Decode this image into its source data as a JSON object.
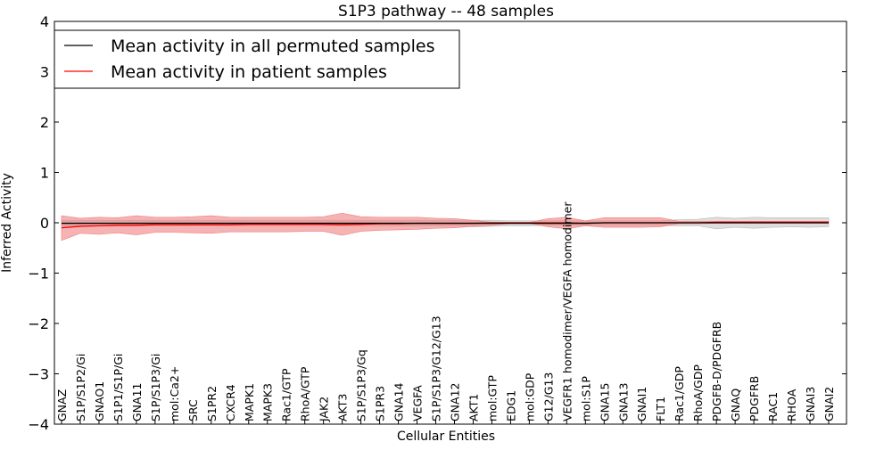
{
  "chart_data": {
    "type": "line",
    "title": "S1P3 pathway -- 48 samples",
    "xlabel": "Cellular Entities",
    "ylabel": "Inferred Activity",
    "ylim": [
      -4,
      4
    ],
    "yticks": [
      -4,
      -3,
      -2,
      -1,
      0,
      1,
      2,
      3,
      4
    ],
    "ytick_labels": [
      "−4",
      "−3",
      "−2",
      "−1",
      "0",
      "1",
      "2",
      "3",
      "4"
    ],
    "grid": false,
    "legend_position": "top-left",
    "categories": [
      "GNAZ",
      "S1P/S1P2/Gi",
      "GNAO1",
      "S1P1/S1P/Gi",
      "GNA11",
      "S1P/S1P3/Gi",
      "mol:Ca2+",
      "SRC",
      "S1PR2",
      "CXCR4",
      "MAPK1",
      "MAPK3",
      "Rac1/GTP",
      "RhoA/GTP",
      "JAK2",
      "AKT3",
      "S1P/S1P3/Gq",
      "S1PR3",
      "GNA14",
      "VEGFA",
      "S1P/S1P3/G12/G13",
      "GNA12",
      "AKT1",
      "mol:GTP",
      "EDG1",
      "mol:GDP",
      "G12/G13",
      "VEGFR1 homodimer/VEGFA homodimer",
      "mol:S1P",
      "GNA15",
      "GNA13",
      "GNAI1",
      "FLT1",
      "Rac1/GDP",
      "RhoA/GDP",
      "PDGFB-D/PDGFRB",
      "GNAQ",
      "PDGFRB",
      "RAC1",
      "RHOA",
      "GNAI3",
      "GNAI2"
    ],
    "series": [
      {
        "name": "Mean activity in all permuted samples",
        "color": "#000000",
        "band_color": "#bbbbbb",
        "values": [
          -0.01,
          -0.01,
          -0.01,
          -0.01,
          -0.01,
          -0.01,
          -0.01,
          -0.01,
          -0.01,
          -0.01,
          -0.01,
          -0.01,
          -0.01,
          -0.01,
          -0.01,
          -0.01,
          -0.01,
          -0.01,
          -0.01,
          -0.01,
          -0.01,
          -0.01,
          -0.01,
          -0.01,
          -0.01,
          -0.01,
          -0.01,
          -0.01,
          -0.01,
          0.0,
          0.0,
          0.0,
          0.0,
          0.0,
          0.0,
          0.0,
          0.0,
          0.0,
          0.0,
          0.0,
          0.0,
          0.0
        ],
        "band_lower": [
          -0.07,
          -0.06,
          -0.06,
          -0.06,
          -0.06,
          -0.06,
          -0.06,
          -0.06,
          -0.06,
          -0.06,
          -0.06,
          -0.06,
          -0.06,
          -0.06,
          -0.06,
          -0.06,
          -0.06,
          -0.06,
          -0.06,
          -0.06,
          -0.06,
          -0.06,
          -0.08,
          -0.07,
          -0.06,
          -0.06,
          -0.05,
          -0.05,
          -0.05,
          -0.05,
          -0.05,
          -0.05,
          -0.05,
          -0.06,
          -0.06,
          -0.12,
          -0.09,
          -0.11,
          -0.09,
          -0.08,
          -0.09,
          -0.08
        ],
        "band_upper": [
          0.05,
          0.05,
          0.05,
          0.05,
          0.05,
          0.05,
          0.05,
          0.05,
          0.05,
          0.05,
          0.05,
          0.05,
          0.05,
          0.05,
          0.05,
          0.05,
          0.05,
          0.05,
          0.05,
          0.05,
          0.05,
          0.05,
          0.05,
          0.05,
          0.04,
          0.04,
          0.04,
          0.04,
          0.04,
          0.04,
          0.04,
          0.04,
          0.04,
          0.06,
          0.07,
          0.11,
          0.09,
          0.11,
          0.1,
          0.1,
          0.1,
          0.1
        ]
      },
      {
        "name": "Mean activity in patient samples",
        "color": "#ff0000",
        "band_color": "#f08080",
        "values": [
          -0.1,
          -0.07,
          -0.06,
          -0.05,
          -0.05,
          -0.04,
          -0.04,
          -0.04,
          -0.04,
          -0.04,
          -0.03,
          -0.03,
          -0.03,
          -0.03,
          -0.03,
          -0.04,
          -0.03,
          -0.02,
          -0.02,
          -0.01,
          -0.01,
          -0.01,
          -0.01,
          0.0,
          0.0,
          0.0,
          0.0,
          0.0,
          -0.01,
          0.0,
          0.0,
          0.0,
          0.0,
          0.0,
          0.0,
          0.01,
          0.01,
          0.01,
          0.01,
          0.01,
          0.01,
          0.01
        ],
        "band_lower": [
          -0.35,
          -0.21,
          -0.23,
          -0.2,
          -0.24,
          -0.19,
          -0.19,
          -0.2,
          -0.21,
          -0.18,
          -0.18,
          -0.18,
          -0.18,
          -0.17,
          -0.17,
          -0.25,
          -0.17,
          -0.15,
          -0.14,
          -0.13,
          -0.11,
          -0.1,
          -0.07,
          -0.05,
          -0.01,
          -0.01,
          -0.08,
          -0.12,
          -0.06,
          -0.09,
          -0.09,
          -0.09,
          -0.08,
          -0.02,
          -0.02,
          -0.01,
          -0.01,
          -0.01,
          -0.01,
          -0.01,
          -0.01,
          -0.01
        ],
        "band_upper": [
          0.14,
          0.09,
          0.11,
          0.1,
          0.14,
          0.11,
          0.11,
          0.12,
          0.14,
          0.11,
          0.11,
          0.11,
          0.11,
          0.11,
          0.12,
          0.19,
          0.12,
          0.11,
          0.11,
          0.11,
          0.09,
          0.08,
          0.05,
          0.01,
          0.01,
          0.01,
          0.08,
          0.11,
          0.04,
          0.1,
          0.1,
          0.1,
          0.1,
          0.03,
          0.03,
          0.03,
          0.03,
          0.03,
          0.03,
          0.03,
          0.03,
          0.03
        ]
      }
    ]
  }
}
